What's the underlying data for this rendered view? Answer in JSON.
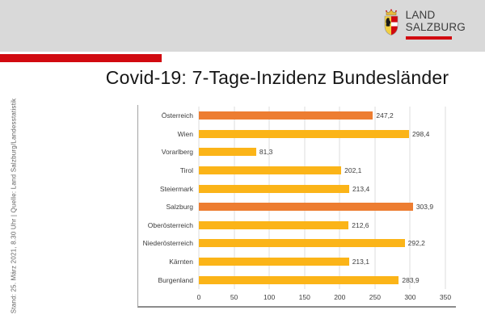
{
  "header": {
    "logo": {
      "line1": "LAND",
      "line2": "SALZBURG"
    }
  },
  "colors": {
    "accent_red": "#d10a10",
    "header_gray": "#d9d9d9",
    "bar_yellow": "#fbb418",
    "bar_orange": "#ed7d31"
  },
  "title": "Covid-19: 7-Tage-Inzidenz Bundesländer",
  "source_note": "Stand: 25. März 2021, 8.30 Uhr | Quelle: Land Salzburg/Landesstatistik",
  "chart_data": {
    "type": "bar",
    "orientation": "horizontal",
    "title": "Covid-19: 7-Tage-Inzidenz Bundesländer",
    "xlabel": "",
    "ylabel": "",
    "categories": [
      "Österreich",
      "Wien",
      "Vorarlberg",
      "Tirol",
      "Steiermark",
      "Salzburg",
      "Oberösterreich",
      "Niederösterreich",
      "Kärnten",
      "Burgenland"
    ],
    "values": [
      247.2,
      298.4,
      81.3,
      202.1,
      213.4,
      303.9,
      212.6,
      292.2,
      213.1,
      283.9
    ],
    "value_labels": [
      "247,2",
      "298,4",
      "81,3",
      "202,1",
      "213,4",
      "303,9",
      "212,6",
      "292,2",
      "213,1",
      "283,9"
    ],
    "colors": [
      "#ed7d31",
      "#fbb418",
      "#fbb418",
      "#fbb418",
      "#fbb418",
      "#ed7d31",
      "#fbb418",
      "#fbb418",
      "#fbb418",
      "#fbb418"
    ],
    "highlight_categories": [
      "Österreich",
      "Salzburg"
    ],
    "xlim": [
      0,
      350
    ],
    "x_ticks": [
      0,
      50,
      100,
      150,
      200,
      250,
      300,
      350
    ],
    "grid": true,
    "legend": "none"
  }
}
